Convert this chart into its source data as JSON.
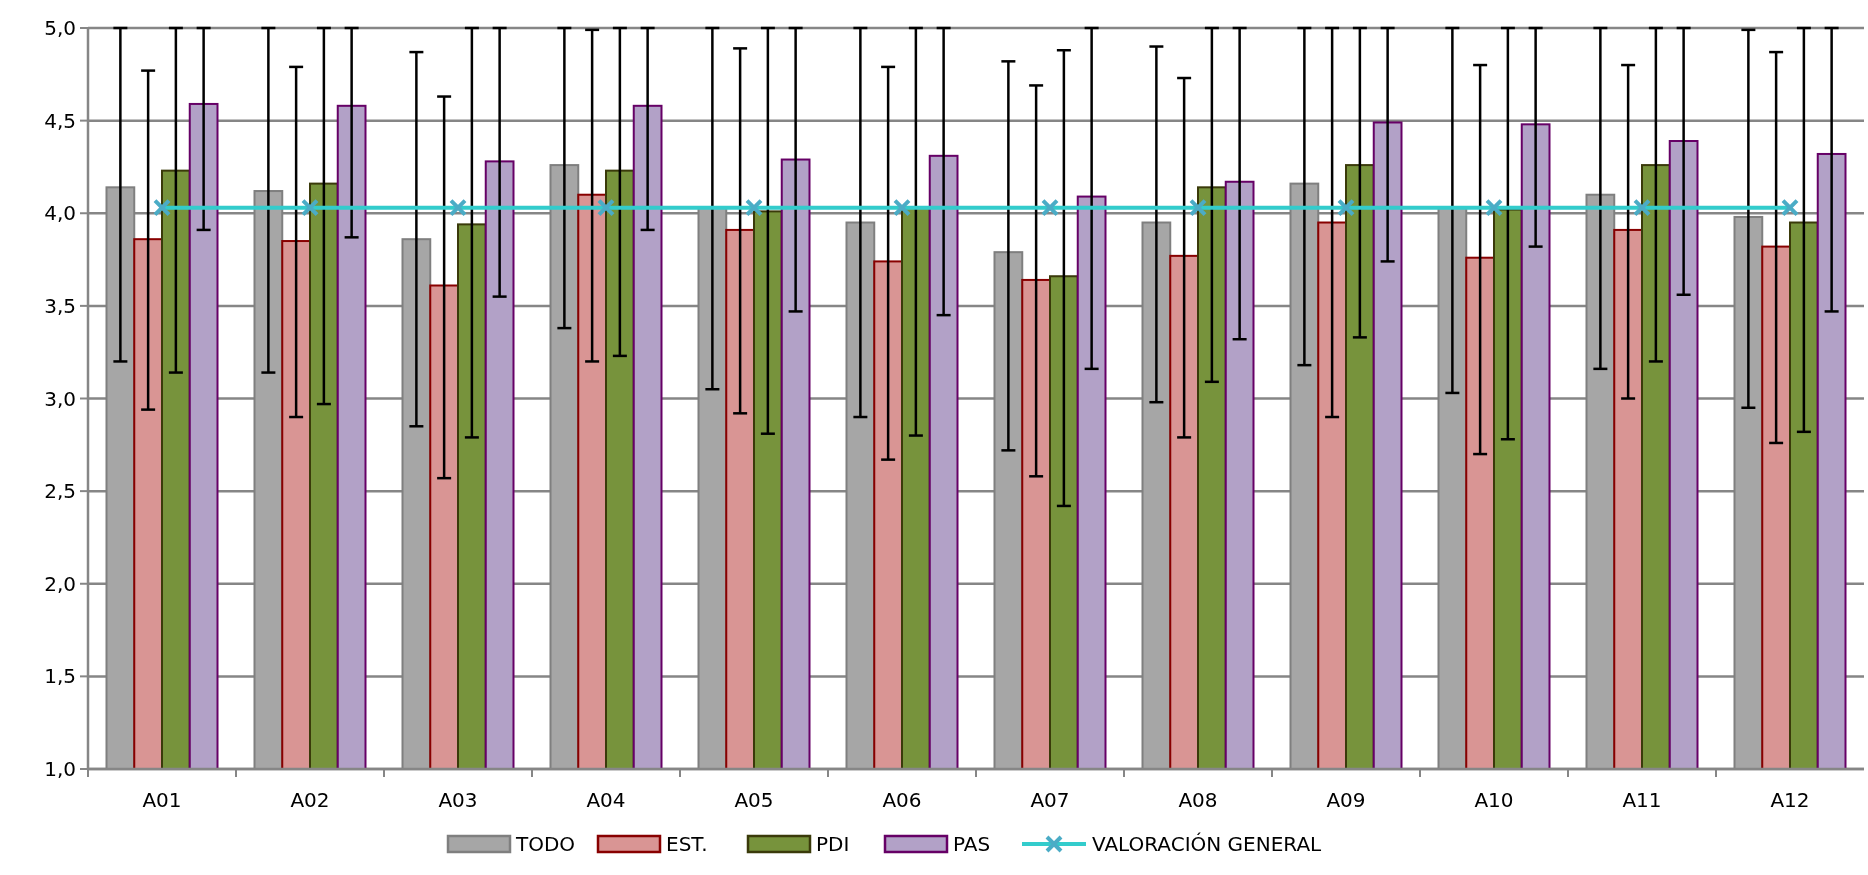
{
  "chart_data": {
    "type": "bar",
    "categories": [
      "A01",
      "A02",
      "A03",
      "A04",
      "A05",
      "A06",
      "A07",
      "A08",
      "A09",
      "A10",
      "A11",
      "A12"
    ],
    "ylim": [
      1,
      5
    ],
    "yticks": [
      {
        "value": 1,
        "label": "1,0"
      },
      {
        "value": 1.5,
        "label": "1,5"
      },
      {
        "value": 2,
        "label": "2,0"
      },
      {
        "value": 2.5,
        "label": "2,5"
      },
      {
        "value": 3,
        "label": "3,0"
      },
      {
        "value": 3.5,
        "label": "3,5"
      },
      {
        "value": 4,
        "label": "4,0"
      },
      {
        "value": 4.5,
        "label": "4,5"
      },
      {
        "value": 5,
        "label": "5,0"
      }
    ],
    "grid": "y",
    "legend": "bottom",
    "series": [
      {
        "name": "TODO",
        "color": "#a6a6a6",
        "values": [
          4.14,
          4.12,
          3.86,
          4.26,
          4.03,
          3.95,
          3.79,
          3.95,
          4.16,
          4.03,
          4.1,
          3.98
        ],
        "errors": [
          [
            3.2,
            5
          ],
          [
            3.14,
            5
          ],
          [
            2.85,
            4.87
          ],
          [
            3.38,
            5
          ],
          [
            3.05,
            5
          ],
          [
            2.9,
            5
          ],
          [
            2.72,
            4.82
          ],
          [
            2.98,
            4.9
          ],
          [
            3.18,
            5
          ],
          [
            3.03,
            5
          ],
          [
            3.16,
            5
          ],
          [
            2.95,
            4.99
          ]
        ]
      },
      {
        "name": "EST.",
        "color": "#d99594",
        "values": [
          3.86,
          3.85,
          3.61,
          4.1,
          3.91,
          3.74,
          3.64,
          3.77,
          3.95,
          3.76,
          3.91,
          3.82
        ],
        "errors": [
          [
            2.94,
            4.77
          ],
          [
            2.9,
            4.79
          ],
          [
            2.57,
            4.63
          ],
          [
            3.2,
            4.99
          ],
          [
            2.92,
            4.89
          ],
          [
            2.67,
            4.79
          ],
          [
            2.58,
            4.69
          ],
          [
            2.79,
            4.73
          ],
          [
            2.9,
            5
          ],
          [
            2.7,
            4.8
          ],
          [
            3.0,
            4.8
          ],
          [
            2.76,
            4.87
          ]
        ]
      },
      {
        "name": "PDI",
        "color": "#77933c",
        "values": [
          4.23,
          4.16,
          3.94,
          4.23,
          4.01,
          4.03,
          3.66,
          4.14,
          4.26,
          4.02,
          4.26,
          3.95
        ],
        "errors": [
          [
            3.14,
            5
          ],
          [
            2.97,
            5
          ],
          [
            2.79,
            5
          ],
          [
            3.23,
            5
          ],
          [
            2.81,
            5
          ],
          [
            2.8,
            5
          ],
          [
            2.42,
            4.88
          ],
          [
            3.09,
            5
          ],
          [
            3.33,
            5
          ],
          [
            2.78,
            5
          ],
          [
            3.2,
            5
          ],
          [
            2.82,
            5
          ]
        ]
      },
      {
        "name": "PAS",
        "color": "#b2a1c7",
        "values": [
          4.59,
          4.58,
          4.28,
          4.58,
          4.29,
          4.31,
          4.09,
          4.17,
          4.49,
          4.48,
          4.39,
          4.32
        ],
        "errors": [
          [
            3.91,
            5
          ],
          [
            3.87,
            5
          ],
          [
            3.55,
            5
          ],
          [
            3.91,
            5
          ],
          [
            3.47,
            5
          ],
          [
            3.45,
            5
          ],
          [
            3.16,
            5
          ],
          [
            3.32,
            5
          ],
          [
            3.74,
            5
          ],
          [
            3.82,
            5
          ],
          [
            3.56,
            5
          ],
          [
            3.47,
            5
          ]
        ]
      },
      {
        "name": "VALORACIÓN GENERAL",
        "type": "line",
        "color": "#33cccc",
        "marker": "cross",
        "values": [
          4.03,
          4.03,
          4.03,
          4.03,
          4.03,
          4.03,
          4.03,
          4.03,
          4.03,
          4.03,
          4.03,
          4.03
        ]
      }
    ]
  }
}
